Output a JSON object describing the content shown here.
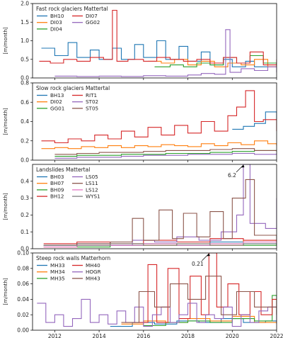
{
  "chart_data": {
    "type": "line",
    "step": true,
    "grid": false,
    "x_axis": {
      "ticks": [
        2012,
        2014,
        2016,
        2018,
        2020,
        2022
      ],
      "xlim": [
        2011.0,
        2022.0
      ]
    },
    "panels": [
      {
        "title": "Fast rock glaciers Mattertal",
        "ylabel": "[m/month]",
        "ylim": [
          0,
          2.0
        ],
        "yticks": [
          "0.0",
          "0.5",
          "1.0",
          "1.5",
          "2.0"
        ],
        "ytick_values": [
          0,
          0.5,
          1.0,
          1.5,
          2.0
        ],
        "legend_cols": 2,
        "series": [
          {
            "name": "BH10",
            "color": "#1f77b4",
            "x": [
              2011.4,
              2012.0,
              2012.6,
              2013.0,
              2013.6,
              2014.0,
              2014.6,
              2015.0,
              2015.6,
              2016.0,
              2016.6,
              2017.0,
              2017.6,
              2018.0,
              2018.6,
              2019.0,
              2019.6,
              2020.0,
              2020.6,
              2021.0,
              2021.6,
              2022.0
            ],
            "y": [
              0.8,
              0.6,
              0.95,
              0.55,
              0.75,
              0.5,
              0.8,
              0.5,
              0.9,
              0.55,
              1.0,
              0.5,
              0.85,
              0.45,
              0.7,
              0.35,
              0.5,
              0.3,
              0.45,
              0.3,
              0.4,
              0.3
            ]
          },
          {
            "name": "DI03",
            "color": "#ff7f0e",
            "x": [
              2016.2,
              2016.8,
              2017.4,
              2018.0,
              2018.6,
              2019.2,
              2019.8,
              2020.4,
              2021.0,
              2021.6,
              2022.0
            ],
            "y": [
              0.45,
              0.4,
              0.5,
              0.35,
              0.45,
              0.3,
              0.4,
              0.35,
              0.5,
              0.3,
              0.4
            ]
          },
          {
            "name": "DI04",
            "color": "#2ca02c",
            "x": [
              2016.5,
              2017.2,
              2017.8,
              2018.4,
              2019.0,
              2019.6,
              2020.2,
              2020.8,
              2021.4,
              2022.0
            ],
            "y": [
              0.3,
              0.35,
              0.3,
              0.4,
              0.35,
              0.55,
              0.4,
              0.6,
              0.4,
              0.35
            ]
          },
          {
            "name": "DI07",
            "color": "#d62728",
            "x": [
              2011.3,
              2011.8,
              2012.4,
              2013.0,
              2013.6,
              2014.2,
              2014.6,
              2014.8,
              2015.3,
              2016.0,
              2016.6,
              2017.2,
              2017.8,
              2018.4,
              2019.0,
              2019.6,
              2020.2,
              2020.8,
              2021.4,
              2022.0
            ],
            "y": [
              0.45,
              0.4,
              0.5,
              0.45,
              0.55,
              0.5,
              1.82,
              0.45,
              0.5,
              0.45,
              0.55,
              0.5,
              0.45,
              0.5,
              0.4,
              0.55,
              0.4,
              0.7,
              0.35,
              0.5
            ]
          },
          {
            "name": "GG02",
            "color": "#9467bd",
            "x": [
              2012.0,
              2013.0,
              2014.0,
              2015.0,
              2016.0,
              2017.0,
              2018.0,
              2018.6,
              2019.2,
              2019.7,
              2019.9,
              2020.4,
              2021.0,
              2021.6,
              2022.0
            ],
            "y": [
              0.05,
              0.04,
              0.05,
              0.04,
              0.06,
              0.05,
              0.08,
              0.12,
              0.1,
              1.3,
              0.15,
              0.25,
              0.2,
              0.3,
              0.15
            ]
          }
        ]
      },
      {
        "title": "Slow rock glaciers Mattertal",
        "ylabel": "[m/month]",
        "ylim": [
          0,
          0.8
        ],
        "yticks": [
          "0.0",
          "0.2",
          "0.4",
          "0.6",
          "0.8"
        ],
        "ytick_values": [
          0,
          0.2,
          0.4,
          0.6,
          0.8
        ],
        "legend_cols": 2,
        "series": [
          {
            "name": "BH13",
            "color": "#1f77b4",
            "x": [
              2020.0,
              2020.5,
              2021.0,
              2021.5,
              2022.0
            ],
            "y": [
              0.32,
              0.35,
              0.38,
              0.5,
              0.42
            ]
          },
          {
            "name": "DI02",
            "color": "#ff7f0e",
            "x": [
              2011.4,
              2012.0,
              2012.6,
              2013.2,
              2013.8,
              2014.4,
              2015.0,
              2015.6,
              2016.2,
              2016.8,
              2017.4,
              2018.0,
              2018.6,
              2019.2,
              2019.8,
              2020.4,
              2021.0,
              2021.6,
              2022.0
            ],
            "y": [
              0.12,
              0.13,
              0.12,
              0.14,
              0.13,
              0.15,
              0.13,
              0.15,
              0.14,
              0.16,
              0.15,
              0.14,
              0.17,
              0.15,
              0.18,
              0.16,
              0.2,
              0.17,
              0.15
            ]
          },
          {
            "name": "GG01",
            "color": "#2ca02c",
            "x": [
              2012.0,
              2013.0,
              2014.0,
              2015.0,
              2016.0,
              2017.0,
              2018.0,
              2019.0,
              2020.0,
              2021.0,
              2022.0
            ],
            "y": [
              0.04,
              0.05,
              0.05,
              0.06,
              0.06,
              0.07,
              0.07,
              0.08,
              0.09,
              0.1,
              0.09
            ]
          },
          {
            "name": "RIT1",
            "color": "#d62728",
            "x": [
              2011.4,
              2012.0,
              2012.6,
              2013.2,
              2013.8,
              2014.4,
              2015.0,
              2015.6,
              2016.2,
              2016.8,
              2017.4,
              2018.0,
              2018.6,
              2019.2,
              2019.8,
              2020.2,
              2020.6,
              2021.0,
              2021.4,
              2022.0
            ],
            "y": [
              0.2,
              0.18,
              0.22,
              0.2,
              0.26,
              0.22,
              0.3,
              0.24,
              0.34,
              0.26,
              0.36,
              0.28,
              0.4,
              0.3,
              0.46,
              0.55,
              0.72,
              0.4,
              0.42,
              0.3
            ]
          },
          {
            "name": "ST02",
            "color": "#9467bd",
            "x": [
              2012.0,
              2013.0,
              2014.0,
              2015.0,
              2016.0,
              2017.0,
              2018.0,
              2019.0,
              2020.0,
              2021.0,
              2022.0
            ],
            "y": [
              0.02,
              0.03,
              0.03,
              0.04,
              0.05,
              0.05,
              0.06,
              0.06,
              0.07,
              0.06,
              0.07
            ]
          },
          {
            "name": "ST05",
            "color": "#8c564b",
            "x": [
              2012.0,
              2013.0,
              2014.0,
              2015.0,
              2016.0,
              2017.0,
              2018.0,
              2019.0,
              2020.0,
              2021.0,
              2022.0
            ],
            "y": [
              0.06,
              0.07,
              0.08,
              0.08,
              0.09,
              0.1,
              0.1,
              0.11,
              0.12,
              0.1,
              0.09
            ]
          }
        ]
      },
      {
        "title": "Landslides Mattertal",
        "ylabel": "[m/month]",
        "ylim": [
          0,
          0.5
        ],
        "yticks": [
          "0.0",
          "0.1",
          "0.2",
          "0.3",
          "0.4"
        ],
        "ytick_values": [
          0,
          0.1,
          0.2,
          0.3,
          0.4
        ],
        "legend_cols": 2,
        "annotation": {
          "text": "6.2",
          "x": 2020.5,
          "y": 0.5
        },
        "series": [
          {
            "name": "BH03",
            "color": "#1f77b4",
            "x": [
              2011.5,
              2013.0,
              2014.5,
              2016.0,
              2017.5,
              2019.0,
              2020.5,
              2022.0
            ],
            "y": [
              0.02,
              0.03,
              0.02,
              0.03,
              0.02,
              0.04,
              0.03,
              0.02
            ]
          },
          {
            "name": "BH07",
            "color": "#ff7f0e",
            "x": [
              2011.5,
              2013.0,
              2014.5,
              2016.0,
              2017.5,
              2019.0,
              2020.5,
              2022.0
            ],
            "y": [
              0.01,
              0.02,
              0.03,
              0.02,
              0.03,
              0.02,
              0.05,
              0.03
            ]
          },
          {
            "name": "BH09",
            "color": "#2ca02c",
            "x": [
              2011.5,
              2013.0,
              2014.5,
              2016.0,
              2017.5,
              2019.0,
              2020.5,
              2022.0
            ],
            "y": [
              0.02,
              0.01,
              0.02,
              0.03,
              0.02,
              0.03,
              0.02,
              0.03
            ]
          },
          {
            "name": "BH12",
            "color": "#d62728",
            "x": [
              2011.5,
              2013.0,
              2014.5,
              2016.0,
              2017.5,
              2019.0,
              2020.5,
              2022.0
            ],
            "y": [
              0.03,
              0.04,
              0.03,
              0.05,
              0.04,
              0.06,
              0.05,
              0.04
            ]
          },
          {
            "name": "LS05",
            "color": "#9467bd",
            "x": [
              2011.5,
              2014.0,
              2015.5,
              2016.5,
              2017.5,
              2018.5,
              2019.5,
              2020.2,
              2020.5,
              2020.8,
              2021.5,
              2022.0
            ],
            "y": [
              0.02,
              0.02,
              0.05,
              0.04,
              0.07,
              0.05,
              0.1,
              0.2,
              0.5,
              0.15,
              0.12,
              0.3
            ]
          },
          {
            "name": "LS11",
            "color": "#8c564b",
            "x": [
              2011.5,
              2013.0,
              2014.5,
              2015.5,
              2016.0,
              2016.7,
              2017.3,
              2017.8,
              2018.4,
              2019.0,
              2019.6,
              2020.0,
              2020.6,
              2021.0,
              2022.0
            ],
            "y": [
              0.02,
              0.03,
              0.04,
              0.18,
              0.05,
              0.23,
              0.06,
              0.21,
              0.07,
              0.22,
              0.06,
              0.3,
              0.41,
              0.08,
              0.05
            ]
          },
          {
            "name": "LS12",
            "color": "#e377c2",
            "x": [
              2011.5,
              2013.0,
              2014.5,
              2016.0,
              2017.5,
              2019.0,
              2020.5,
              2022.0
            ],
            "y": [
              0.01,
              0.02,
              0.02,
              0.03,
              0.02,
              0.03,
              0.04,
              0.03
            ]
          },
          {
            "name": "WYS1",
            "color": "#7f7f7f",
            "x": [
              2011.5,
              2013.0,
              2014.5,
              2016.0,
              2017.5,
              2019.0,
              2020.5,
              2022.0
            ],
            "y": [
              0.02,
              0.02,
              0.03,
              0.02,
              0.03,
              0.02,
              0.03,
              0.02
            ]
          }
        ]
      },
      {
        "title": "Steep rock walls Matterhorn",
        "ylabel": "[m/month]",
        "ylim": [
          0,
          0.1
        ],
        "yticks": [
          "0.00",
          "0.02",
          "0.04",
          "0.06",
          "0.08",
          "0.10"
        ],
        "ytick_values": [
          0,
          0.02,
          0.04,
          0.06,
          0.08,
          0.1
        ],
        "legend_cols": 2,
        "annotation": {
          "text": "0.21",
          "x": 2018.95,
          "y": 0.1
        },
        "series": [
          {
            "name": "MH33",
            "color": "#1f77b4",
            "x": [
              2014.5,
              2015.5,
              2016.5,
              2017.5,
              2018.5,
              2019.5,
              2020.5,
              2021.5,
              2022.0
            ],
            "y": [
              0.005,
              0.01,
              0.008,
              0.012,
              0.01,
              0.015,
              0.01,
              0.012,
              0.008
            ]
          },
          {
            "name": "MH34",
            "color": "#ff7f0e",
            "x": [
              2015.0,
              2016.0,
              2017.0,
              2018.0,
              2019.0,
              2020.0,
              2021.0,
              2022.0
            ],
            "y": [
              0.008,
              0.012,
              0.01,
              0.015,
              0.012,
              0.018,
              0.01,
              0.012
            ]
          },
          {
            "name": "MH35",
            "color": "#2ca02c",
            "x": [
              2016.0,
              2017.0,
              2018.0,
              2019.0,
              2020.0,
              2021.0,
              2021.8,
              2022.0
            ],
            "y": [
              0.006,
              0.01,
              0.012,
              0.01,
              0.015,
              0.012,
              0.045,
              0.01
            ]
          },
          {
            "name": "MH40",
            "color": "#d62728",
            "x": [
              2015.5,
              2016.2,
              2016.6,
              2017.1,
              2017.6,
              2018.1,
              2018.6,
              2018.95,
              2019.3,
              2019.8,
              2020.3,
              2020.8,
              2021.3,
              2021.8,
              2022.0
            ],
            "y": [
              0.01,
              0.085,
              0.01,
              0.08,
              0.015,
              0.07,
              0.02,
              0.1,
              0.03,
              0.06,
              0.02,
              0.05,
              0.02,
              0.04,
              0.02
            ]
          },
          {
            "name": "HOGR",
            "color": "#9467bd",
            "x": [
              2011.2,
              2011.6,
              2012.0,
              2012.4,
              2012.8,
              2013.2,
              2013.6,
              2014.0,
              2014.4,
              2014.8,
              2015.2,
              2015.6,
              2016.0,
              2016.4,
              2016.8,
              2017.2,
              2017.6,
              2018.0,
              2018.4,
              2018.8,
              2019.2,
              2019.6,
              2020.0,
              2020.4,
              2020.8,
              2021.2,
              2021.6,
              2022.0
            ],
            "y": [
              0.035,
              0.01,
              0.02,
              0.005,
              0.015,
              0.04,
              0.01,
              0.02,
              0.008,
              0.025,
              0.01,
              0.03,
              0.005,
              0.02,
              0.03,
              0.01,
              0.02,
              0.035,
              0.01,
              0.02,
              0.015,
              0.03,
              0.005,
              0.02,
              0.01,
              0.025,
              0.03,
              0.01
            ]
          },
          {
            "name": "MH43",
            "color": "#8c564b",
            "x": [
              2015.0,
              2015.8,
              2016.5,
              2017.2,
              2018.0,
              2018.8,
              2019.5,
              2020.2,
              2021.0,
              2022.0
            ],
            "y": [
              0.01,
              0.05,
              0.03,
              0.06,
              0.04,
              0.07,
              0.02,
              0.05,
              0.03,
              0.02
            ]
          }
        ]
      }
    ]
  }
}
